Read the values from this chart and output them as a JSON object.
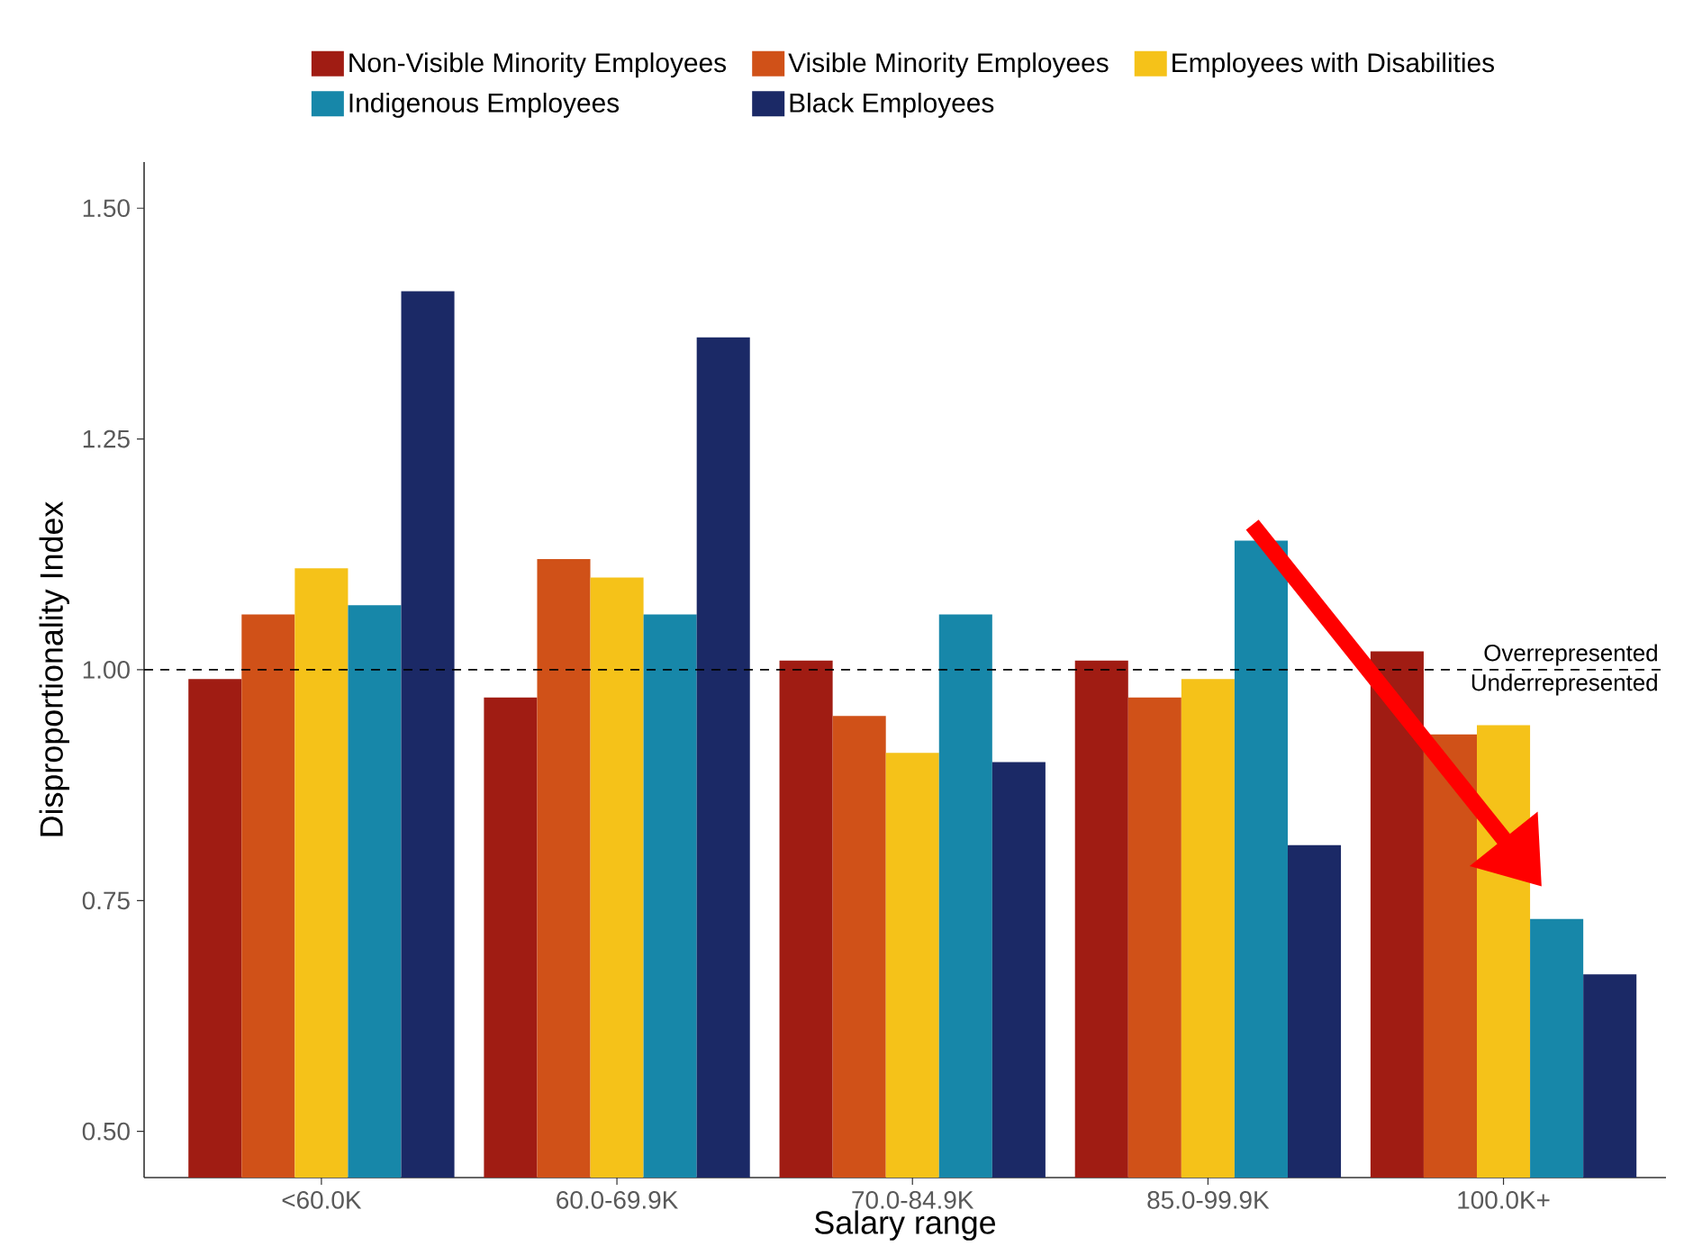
{
  "chart_data": {
    "type": "bar",
    "xlabel": "Salary range",
    "ylabel": "Disproportionality Index",
    "categories": [
      "<60.0K",
      "60.0-69.9K",
      "70.0-84.9K",
      "85.0-99.9K",
      "100.0K+"
    ],
    "series": [
      {
        "name": "Non-Visible Minority Employees",
        "color": "#a01c13",
        "values": [
          0.99,
          0.97,
          1.01,
          1.01,
          1.02
        ]
      },
      {
        "name": "Visible Minority Employees",
        "color": "#d05118",
        "values": [
          1.06,
          1.12,
          0.95,
          0.97,
          0.93
        ]
      },
      {
        "name": "Employees with Disabilities",
        "color": "#f5c219",
        "values": [
          1.11,
          1.1,
          0.91,
          0.99,
          0.94
        ]
      },
      {
        "name": "Indigenous Employees",
        "color": "#1787a9",
        "values": [
          1.07,
          1.06,
          1.06,
          1.14,
          0.73
        ]
      },
      {
        "name": "Black Employees",
        "color": "#1b2966",
        "values": [
          1.41,
          1.36,
          0.9,
          0.81,
          0.67
        ]
      }
    ],
    "ylim": [
      0.45,
      1.55
    ],
    "yticks": [
      {
        "value": 0.5,
        "label": "0.50"
      },
      {
        "value": 0.75,
        "label": "0.75"
      },
      {
        "value": 1.0,
        "label": "1.00"
      },
      {
        "value": 1.25,
        "label": "1.25"
      },
      {
        "value": 1.5,
        "label": "1.50"
      }
    ],
    "ref_lines": [
      {
        "axis": "y",
        "value": 1.0,
        "line_style": "dashed",
        "color": "#000000"
      }
    ],
    "annotations": [
      {
        "text": "Overrepresented",
        "y": 1.0
      },
      {
        "text": "Underrepresented",
        "y": 1.0
      }
    ],
    "legend": "top",
    "grid": false
  }
}
